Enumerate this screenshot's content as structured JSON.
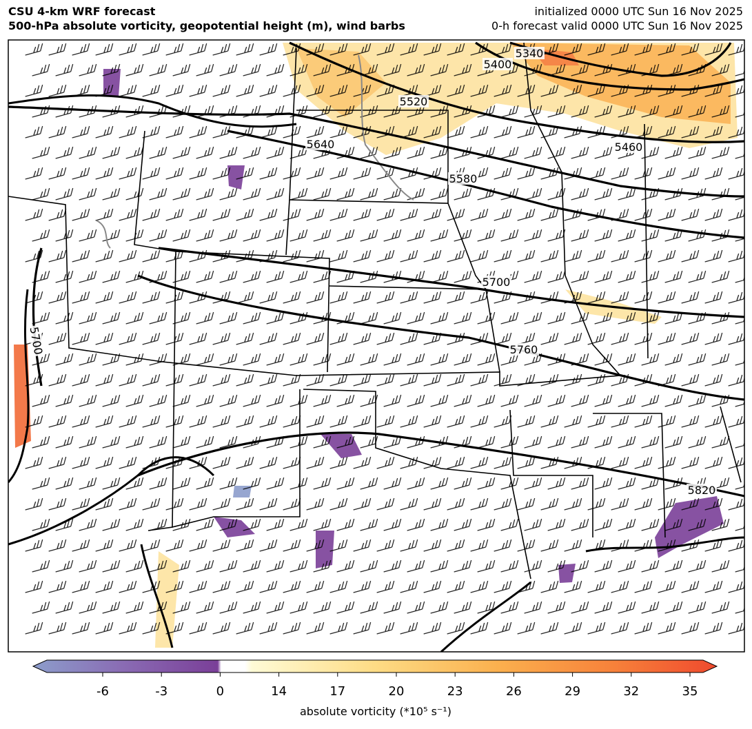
{
  "header": {
    "title": "CSU 4-km WRF forecast",
    "subtitle": "500-hPa absolute vorticity, geopotential height (m), wind barbs",
    "init": "initialized 0000 UTC Sun 16 Nov 2025",
    "valid": "0-h forecast valid 0000 UTC Sun 16 Nov 2025"
  },
  "map": {
    "contour_labels": [
      5340,
      5400,
      5460,
      5520,
      5580,
      5640,
      5700,
      5760,
      5820,
      5700
    ]
  },
  "colorbar": {
    "ticks": [
      -6,
      -3,
      0,
      14,
      17,
      20,
      23,
      26,
      29,
      32,
      35
    ],
    "label": "absolute vorticity (*10⁵ s⁻¹)"
  }
}
